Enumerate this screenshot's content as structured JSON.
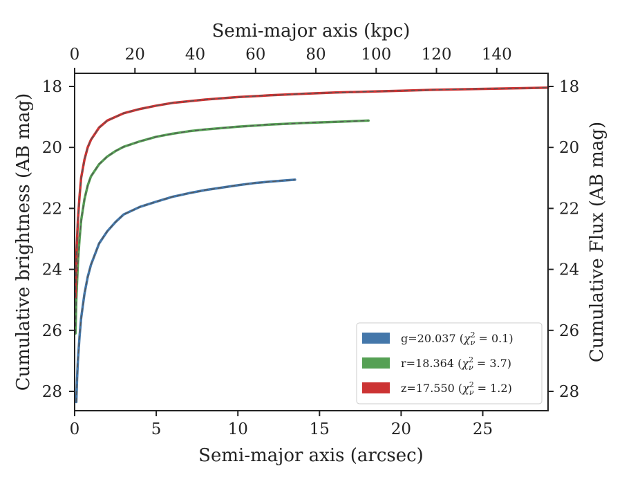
{
  "chart_data": {
    "type": "line",
    "title": "",
    "xlabel": "Semi-major axis (arcsec)",
    "x2label": "Semi-major axis (kpc)",
    "ylabel": "Cumulative brightness (AB mag)",
    "y2label": "Cumulative Flux (AB mag)",
    "xlim": [
      0,
      29
    ],
    "x2lim": [
      0,
      157
    ],
    "ylim": [
      28.7,
      17.5
    ],
    "y_inverted": true,
    "xticks": [
      0,
      5,
      10,
      15,
      20,
      25
    ],
    "x2ticks": [
      0,
      20,
      40,
      60,
      80,
      100,
      120,
      140
    ],
    "yticks": [
      18,
      20,
      22,
      24,
      26,
      28
    ],
    "grid": false,
    "legend_position": "bottom-right",
    "series": [
      {
        "name": "g=20.037",
        "chi2": "0.1",
        "color": "#4477aa",
        "x": [
          0.1,
          0.15,
          0.2,
          0.3,
          0.4,
          0.6,
          0.8,
          1.0,
          1.5,
          2.0,
          2.5,
          3.0,
          4.0,
          5.0,
          6.0,
          7.0,
          8.0,
          9.0,
          10.0,
          11.0,
          12.0,
          13.0,
          13.5
        ],
        "values": [
          28.35,
          27.6,
          27.0,
          26.2,
          25.6,
          24.8,
          24.25,
          23.85,
          23.15,
          22.75,
          22.45,
          22.2,
          21.95,
          21.78,
          21.62,
          21.5,
          21.4,
          21.32,
          21.24,
          21.17,
          21.12,
          21.08,
          21.06
        ]
      },
      {
        "name": "r=18.364",
        "chi2": "3.7",
        "color": "#55a054",
        "x": [
          0.05,
          0.1,
          0.2,
          0.3,
          0.4,
          0.6,
          0.8,
          1.0,
          1.5,
          2.0,
          2.5,
          3.0,
          4.0,
          5.0,
          6.0,
          7.0,
          8.0,
          10.0,
          12.0,
          14.0,
          16.0,
          18.0
        ],
        "values": [
          26.1,
          25.0,
          23.8,
          23.0,
          22.4,
          21.7,
          21.25,
          20.95,
          20.55,
          20.3,
          20.12,
          19.98,
          19.8,
          19.65,
          19.55,
          19.47,
          19.41,
          19.32,
          19.25,
          19.2,
          19.16,
          19.12
        ]
      },
      {
        "name": "z=17.550",
        "chi2": "1.2",
        "color": "#cc3333",
        "x": [
          0.05,
          0.1,
          0.2,
          0.3,
          0.4,
          0.6,
          0.8,
          1.0,
          1.5,
          2.0,
          3.0,
          4.0,
          5.0,
          6.0,
          8.0,
          10.0,
          12.0,
          14.0,
          16.0,
          18.0,
          20.0,
          22.0,
          24.0,
          26.0,
          28.0,
          29.0
        ],
        "values": [
          24.9,
          23.6,
          22.4,
          21.6,
          21.0,
          20.4,
          20.0,
          19.75,
          19.35,
          19.12,
          18.88,
          18.74,
          18.63,
          18.54,
          18.43,
          18.35,
          18.29,
          18.24,
          18.2,
          18.17,
          18.14,
          18.11,
          18.09,
          18.07,
          18.05,
          18.04
        ]
      }
    ]
  }
}
